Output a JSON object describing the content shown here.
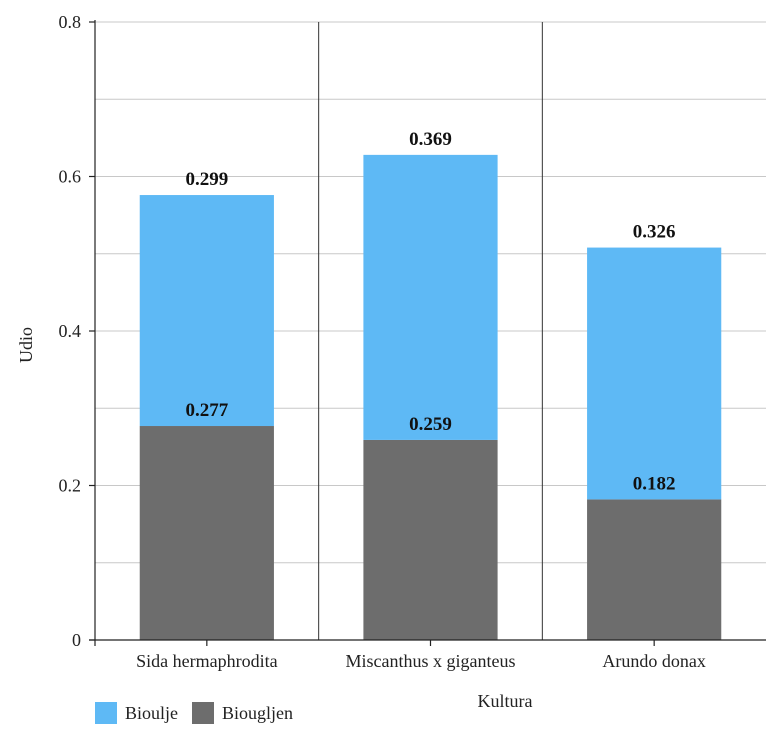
{
  "chart_data": {
    "type": "bar",
    "stacked": true,
    "categories": [
      "Sida hermaphrodita",
      "Miscanthus x giganteus",
      "Arundo donax"
    ],
    "series": [
      {
        "name": "Biougljen",
        "values": [
          0.277,
          0.259,
          0.182
        ],
        "color": "#6d6d6d"
      },
      {
        "name": "Bioulje",
        "values": [
          0.299,
          0.369,
          0.326
        ],
        "color": "#5eb9f5"
      }
    ],
    "xlabel": "Kultura",
    "ylabel": "Udio",
    "ylim": [
      0,
      0.8
    ],
    "yticks": [
      "0",
      "0.2",
      "0.4",
      "0.6",
      "0.8"
    ],
    "grid": true,
    "legend": {
      "position": "bottom-left",
      "items": [
        {
          "label": "Bioulje",
          "color": "#5eb9f5"
        },
        {
          "label": "Biougljen",
          "color": "#6d6d6d"
        }
      ]
    }
  }
}
